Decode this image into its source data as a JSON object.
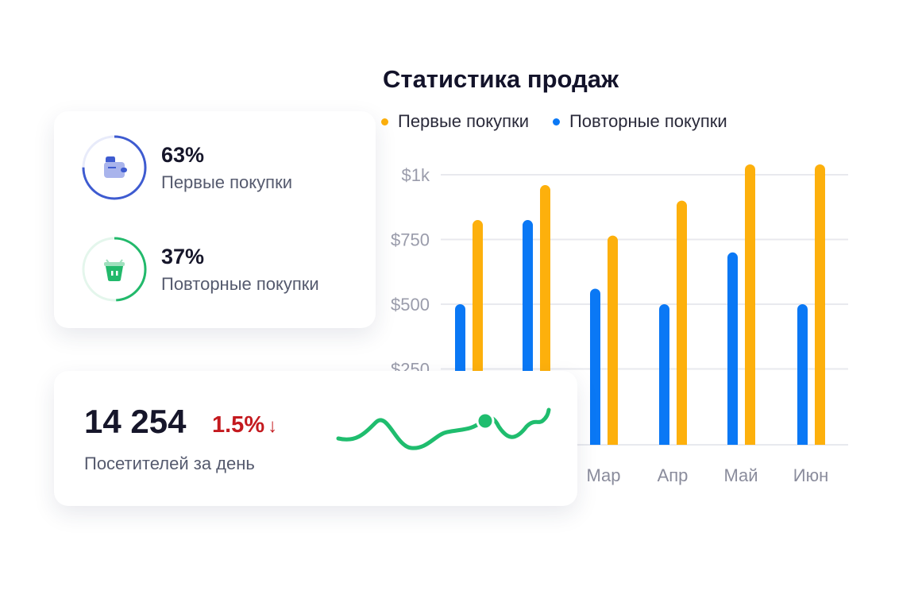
{
  "chart_data": {
    "type": "bar",
    "title": "Статистика продаж",
    "categories": [
      "",
      "",
      "Мар",
      "Апр",
      "Май",
      "Июн"
    ],
    "series": [
      {
        "name": "Повторные покупки",
        "color": "#0a78f5",
        "values": [
          500,
          825,
          560,
          500,
          700,
          500
        ]
      },
      {
        "name": "Первые покупки",
        "color": "#fdb00c",
        "values": [
          825,
          960,
          765,
          900,
          1040,
          1040
        ]
      }
    ],
    "legend_order": [
      "Первые покупки",
      "Повторные покупки"
    ],
    "yticks": [
      {
        "value": 250,
        "label": "$250"
      },
      {
        "value": 500,
        "label": "$500"
      },
      {
        "value": 750,
        "label": "$750"
      },
      {
        "value": 1000,
        "label": "$1k"
      }
    ],
    "ylim": [
      0,
      1000
    ],
    "grid": true,
    "legend_position": "top"
  },
  "cards": {
    "first": {
      "percent": "63%",
      "value": 63,
      "label": "Первые покупки",
      "color": "#3e5bd0",
      "icon": "wallet-icon"
    },
    "repeat": {
      "percent": "37%",
      "value": 37,
      "label": "Повторные покупки",
      "color": "#22b96b",
      "icon": "basket-icon"
    },
    "visitors": {
      "count": "14 254",
      "delta": "1.5%",
      "delta_icon": "arrow-down-icon",
      "label": "Посетителей за день",
      "delta_color": "#c41a1f",
      "sparkline_color": "#1fbd6e"
    }
  }
}
